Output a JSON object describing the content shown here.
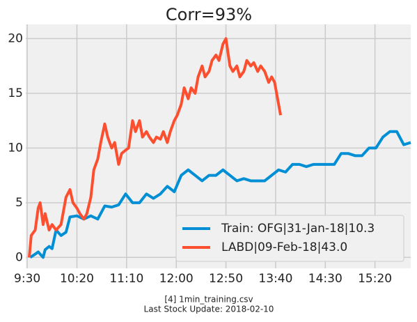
{
  "chart_data": {
    "type": "line",
    "title": "Corr=93%",
    "xlim": [
      -1.5,
      386
    ],
    "xticks": [
      {
        "value": 0,
        "label": "9:30"
      },
      {
        "value": 50,
        "label": "10:20"
      },
      {
        "value": 100,
        "label": "11:10"
      },
      {
        "value": 150,
        "label": "12:00"
      },
      {
        "value": 200,
        "label": "12:50"
      },
      {
        "value": 250,
        "label": "13:40"
      },
      {
        "value": 300,
        "label": "14:30"
      },
      {
        "value": 350,
        "label": "15:20"
      }
    ],
    "ylim": [
      -1,
      21.3
    ],
    "yticks": [
      0,
      5,
      10,
      15,
      20
    ],
    "grid": true,
    "legend": "lower right",
    "series": [
      {
        "name": "Train: OFG|31-Jan-18|10.3",
        "color": "#008fd5",
        "x": [
          3,
          8,
          11,
          16,
          18,
          22,
          25,
          29,
          34,
          39,
          43,
          50,
          57,
          64,
          71,
          78,
          85,
          92,
          99,
          106,
          113,
          120,
          127,
          134,
          141,
          148,
          155,
          162,
          169,
          176,
          183,
          190,
          197,
          204,
          211,
          218,
          225,
          232,
          239,
          246,
          253,
          260,
          267,
          274,
          281,
          288,
          295,
          302,
          309,
          316,
          323,
          330,
          337,
          344,
          351,
          358,
          365,
          372,
          379,
          386
        ],
        "values": [
          0,
          0.3,
          0.5,
          0,
          0.7,
          1,
          0.8,
          2.5,
          2,
          2.3,
          3.7,
          3.8,
          3.5,
          3.8,
          3.5,
          4.7,
          4.6,
          4.8,
          5.8,
          5,
          5,
          5.8,
          5.4,
          5.8,
          6.5,
          6,
          7.5,
          8,
          7.5,
          7,
          7.5,
          7.5,
          8,
          7.5,
          7,
          7.2,
          7,
          7,
          7,
          7.5,
          8,
          7.8,
          8.5,
          8.5,
          8.3,
          8.5,
          8.5,
          8.5,
          8.5,
          9.5,
          9.5,
          9.3,
          9.3,
          10,
          10,
          11,
          11.5,
          11.5,
          10.3,
          10.5
        ]
      },
      {
        "name": "LABD|09-Feb-18|43.0",
        "color": "#fc4f30",
        "x": [
          2,
          4,
          8,
          11,
          13,
          16,
          18,
          22,
          25,
          29,
          34,
          39,
          43,
          46,
          50,
          53,
          57,
          60,
          64,
          67,
          71,
          74,
          78,
          81,
          85,
          88,
          92,
          95,
          99,
          102,
          106,
          109,
          113,
          116,
          120,
          123,
          127,
          130,
          134,
          137,
          141,
          144,
          148,
          151,
          155,
          158,
          162,
          165,
          169,
          172,
          176,
          179,
          183,
          186,
          190,
          193,
          197,
          200,
          204,
          207,
          211,
          214,
          218,
          221,
          225,
          228,
          232,
          235,
          239,
          243,
          246,
          249,
          253,
          255
        ],
        "values": [
          0,
          2,
          2.5,
          4.5,
          5,
          3,
          4,
          2.5,
          3,
          2.5,
          3,
          5.5,
          6.2,
          5,
          4.5,
          4,
          3.5,
          4,
          5.5,
          8,
          9,
          10.5,
          12.2,
          11,
          10,
          10.5,
          8.5,
          9.5,
          9.8,
          10,
          12.5,
          11.5,
          12.5,
          11,
          11.5,
          11,
          10.5,
          11,
          10.8,
          11.5,
          10.5,
          11.5,
          12.5,
          13,
          14,
          15.5,
          14.5,
          15.5,
          15,
          16.5,
          17.5,
          16.5,
          17,
          18,
          18.5,
          18,
          19.5,
          20,
          17.5,
          17,
          17.5,
          16.5,
          17,
          18,
          17.5,
          17.8,
          17,
          17.5,
          17,
          16,
          16.5,
          16,
          14,
          13
        ]
      }
    ],
    "notes": [
      "[4] 1min_training.csv",
      "Last Stock Update: 2018-02-10"
    ]
  }
}
